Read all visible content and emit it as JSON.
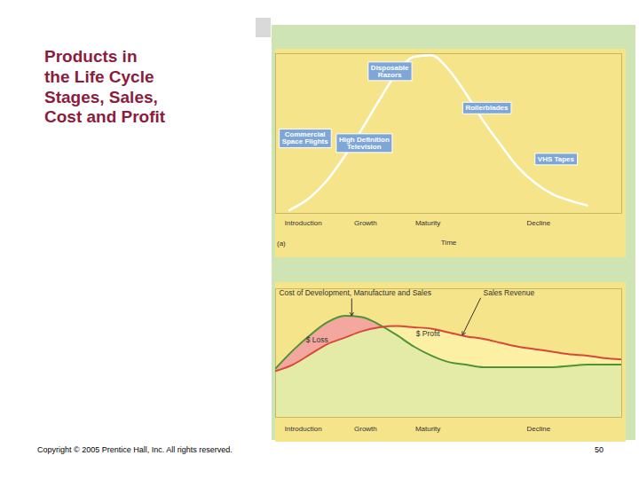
{
  "title": "Products in\nthe Life Cycle\nStages, Sales,\nCost and Profit",
  "footer": "Copyright © 2005 Prentice Hall, Inc. All rights reserved.",
  "page_number": 50,
  "chart_data": [
    {
      "type": "line",
      "panel_label": "(a)",
      "x_label": "Time",
      "xlim": [
        0,
        100
      ],
      "xticks": [
        {
          "value": 8,
          "label": "Introduction"
        },
        {
          "value": 26,
          "label": "Growth"
        },
        {
          "value": 44,
          "label": "Maturity"
        },
        {
          "value": 76,
          "label": "Decline"
        }
      ],
      "ylim": [
        0,
        100
      ],
      "tick_labels": "x",
      "grid": false,
      "color": "#ffffff",
      "x": [
        4,
        10,
        15,
        20,
        25,
        30,
        35,
        40,
        45,
        50,
        55,
        60,
        65,
        70,
        75,
        80,
        85,
        90
      ],
      "values": [
        2,
        10,
        21,
        36,
        53,
        71,
        88,
        98,
        99,
        90,
        75,
        58,
        43,
        29,
        19,
        12,
        8,
        5
      ],
      "annotations": [
        {
          "text": "Commercial Space Flights",
          "x": 8.5,
          "y": 47
        },
        {
          "text": "High Definition Television",
          "x": 25.6,
          "y": 44
        },
        {
          "text": "Disposable Razors",
          "x": 33,
          "y": 89
        },
        {
          "text": "Rollerblades",
          "x": 61,
          "y": 66
        },
        {
          "text": "VHS Tapes",
          "x": 81,
          "y": 34
        }
      ]
    },
    {
      "type": "line",
      "xlim": [
        0,
        100
      ],
      "xticks": [
        {
          "value": 8,
          "label": "Introduction"
        },
        {
          "value": 26,
          "label": "Growth"
        },
        {
          "value": 44,
          "label": "Maturity"
        },
        {
          "value": 76,
          "label": "Decline"
        }
      ],
      "ylim": [
        0,
        100
      ],
      "tick_labels": "x",
      "grid": false,
      "x": [
        0,
        5,
        10,
        15,
        20,
        25,
        30,
        35,
        40,
        45,
        50,
        55,
        60,
        65,
        70,
        75,
        80,
        85,
        90,
        95,
        100
      ],
      "series": [
        {
          "name": "Cost of Development, Manufacture and Sales",
          "color": "#4f9433",
          "values": [
            38,
            52,
            64,
            74,
            79,
            78,
            72,
            64,
            55,
            48,
            43,
            41,
            39,
            39,
            39,
            39,
            39,
            40,
            41,
            41,
            41
          ],
          "label": {
            "x": 1,
            "y": 97,
            "point": [
              22,
              79
            ]
          }
        },
        {
          "name": "Sales Revenue",
          "color": "#d9473a",
          "values": [
            36,
            41,
            49,
            57,
            62,
            67,
            70,
            71,
            70,
            69,
            66,
            63,
            61,
            58,
            55,
            53,
            51,
            49,
            48,
            46,
            45
          ],
          "label": {
            "x": 60,
            "y": 97,
            "point": [
              54,
              64
            ]
          }
        }
      ],
      "annotations": [
        {
          "text": "$ Loss",
          "x": 12,
          "y": 60
        },
        {
          "text": "$ Profit",
          "x": 44,
          "y": 65
        }
      ]
    }
  ]
}
